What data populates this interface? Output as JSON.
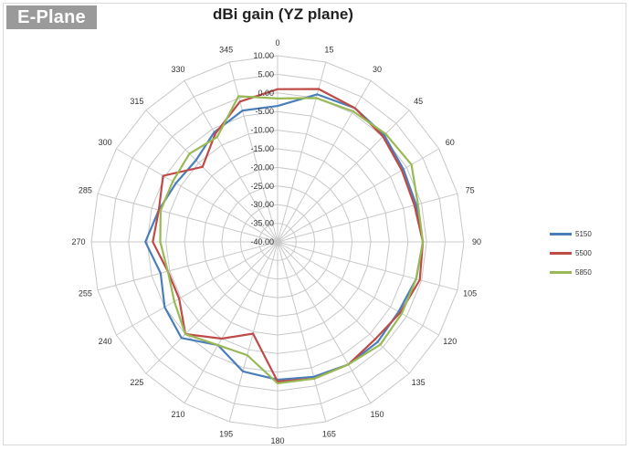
{
  "badge": "E-Plane",
  "chart_data": {
    "type": "radar",
    "title": "dBi gain (YZ plane)",
    "angles": [
      0,
      15,
      30,
      45,
      60,
      75,
      90,
      105,
      120,
      135,
      150,
      165,
      180,
      195,
      210,
      225,
      240,
      255,
      270,
      285,
      300,
      315,
      330,
      345
    ],
    "radial_ticks": [
      "10.00",
      "5.00",
      "0.00",
      "-5.00",
      "-10.00",
      "-15.00",
      "-20.00",
      "-25.00",
      "-30.00",
      "-35.00",
      "-40.00"
    ],
    "rlim": [
      -40,
      10
    ],
    "grid": true,
    "legend_position": "right",
    "series": [
      {
        "name": "5150",
        "color": "#4a7ebb",
        "values": [
          -3.5,
          1.0,
          1.5,
          0.5,
          -1.0,
          -1.5,
          -1.0,
          -1.5,
          -2.5,
          -2.0,
          -2.0,
          -2.5,
          -3.0,
          -4.0,
          -8.0,
          -3.5,
          -5.0,
          -7.5,
          -4.5,
          -7.0,
          -8.5,
          -9.0,
          -6.0,
          -3.5
        ]
      },
      {
        "name": "5500",
        "color": "#be4b48",
        "values": [
          1.0,
          2.5,
          1.5,
          0.0,
          -1.5,
          -2.0,
          -1.0,
          -0.5,
          -2.0,
          -3.0,
          -2.0,
          -2.0,
          -2.5,
          -14.5,
          -10.0,
          -5.0,
          -9.5,
          -9.5,
          -6.5,
          -7.0,
          -4.5,
          -11.5,
          -6.5,
          -1.0
        ]
      },
      {
        "name": "5850",
        "color": "#98b954",
        "values": [
          -1.5,
          0.0,
          0.5,
          1.0,
          1.5,
          -1.0,
          -1.0,
          -1.5,
          -1.5,
          -1.0,
          -2.0,
          -2.0,
          -2.0,
          -8.5,
          -8.0,
          -5.0,
          -8.0,
          -9.5,
          -8.5,
          -7.5,
          -7.5,
          -6.5,
          -7.5,
          0.5
        ]
      }
    ]
  }
}
